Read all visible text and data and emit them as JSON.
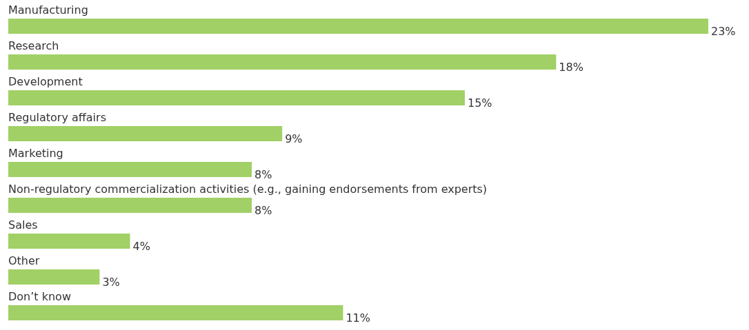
{
  "chart_data": {
    "type": "bar",
    "orientation": "horizontal",
    "categories": [
      "Manufacturing",
      "Research",
      "Development",
      "Regulatory affairs",
      "Marketing",
      "Non-regulatory commercialization activities (e.g., gaining endorsements from experts)",
      "Sales",
      "Other",
      "Don’t know"
    ],
    "values": [
      23,
      18,
      15,
      9,
      8,
      8,
      4,
      3,
      11
    ],
    "value_labels": [
      "23%",
      "18%",
      "15%",
      "9%",
      "8%",
      "8%",
      "4%",
      "3%",
      "11%"
    ],
    "color": "#a1d066"
  }
}
